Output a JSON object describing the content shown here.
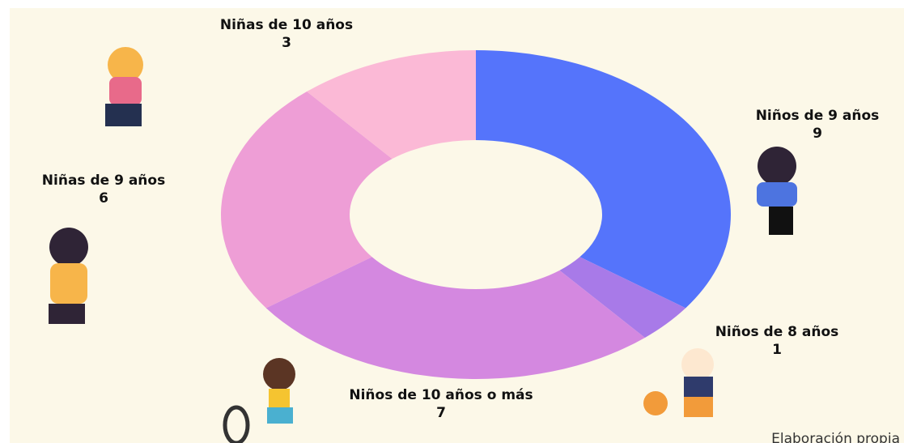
{
  "chart_data": {
    "type": "donut",
    "categories": [
      "Niños de 9 años",
      "Niños de 8 años",
      "Niños de 10 años o más",
      "Niñas de 9 años",
      "Niñas de 10 años"
    ],
    "values": [
      9,
      1,
      7,
      6,
      3
    ],
    "colors": [
      "#5574fb",
      "#a87ae8",
      "#d488e0",
      "#ee9ed6",
      "#fbb9d6"
    ],
    "note": "Elaboración propia"
  }
}
